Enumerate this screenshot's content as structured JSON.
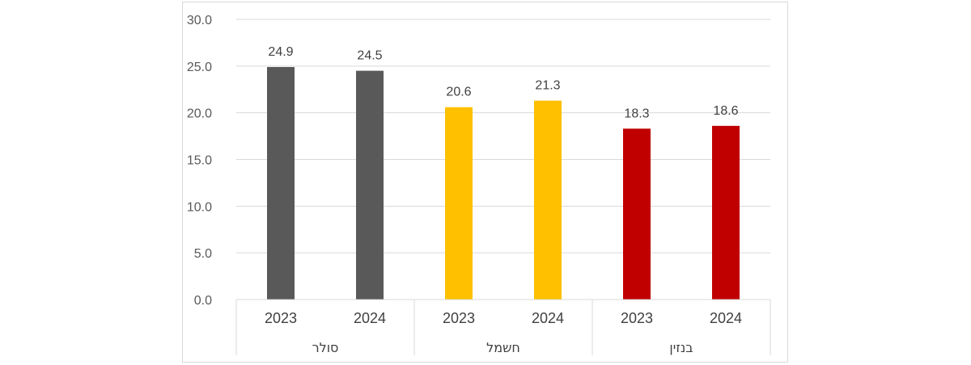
{
  "chart_data": {
    "type": "bar",
    "title": "",
    "xlabel": "",
    "ylabel": "",
    "ylim": [
      0,
      30
    ],
    "yticks": [
      "0.0",
      "5.0",
      "10.0",
      "15.0",
      "20.0",
      "25.0",
      "30.0"
    ],
    "grid": true,
    "legend": "none",
    "groups": [
      {
        "name": "סולר",
        "color": "#595959",
        "bars": [
          {
            "category": "2023",
            "value": 24.9,
            "label": "24.9"
          },
          {
            "category": "2024",
            "value": 24.5,
            "label": "24.5"
          }
        ]
      },
      {
        "name": "חשמל",
        "color": "#ffc000",
        "bars": [
          {
            "category": "2023",
            "value": 20.6,
            "label": "20.6"
          },
          {
            "category": "2024",
            "value": 21.3,
            "label": "21.3"
          }
        ]
      },
      {
        "name": "בנזין",
        "color": "#c00000",
        "bars": [
          {
            "category": "2023",
            "value": 18.3,
            "label": "18.3"
          },
          {
            "category": "2024",
            "value": 18.6,
            "label": "18.6"
          }
        ]
      }
    ]
  }
}
